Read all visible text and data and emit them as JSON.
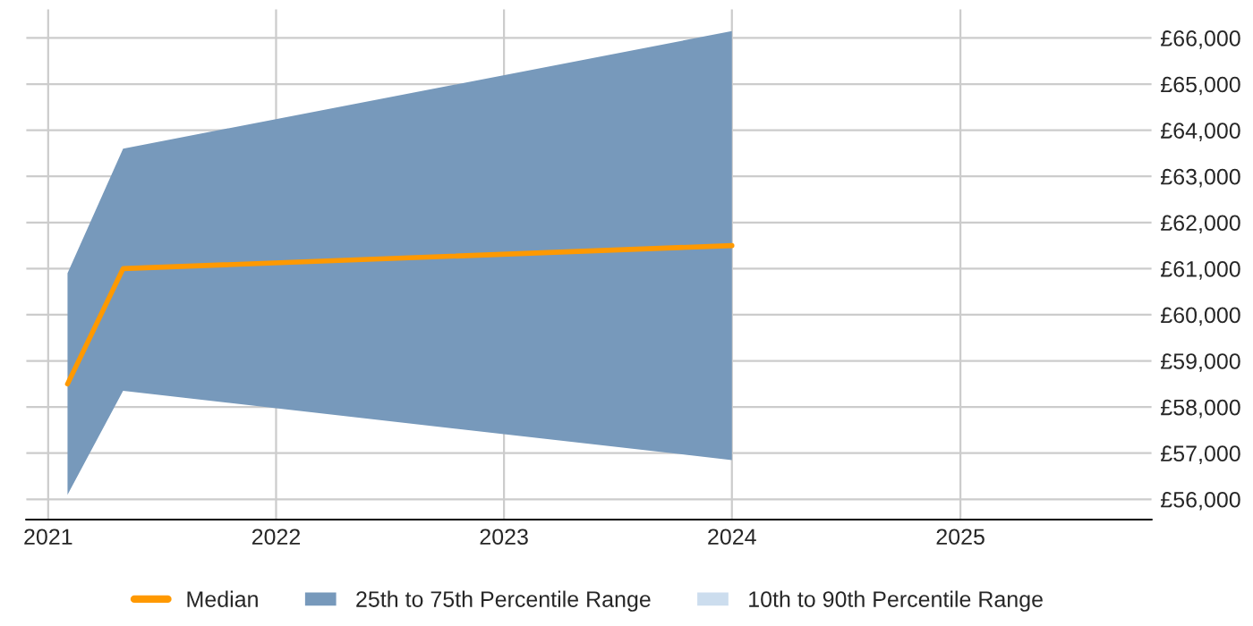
{
  "chart_data": {
    "type": "line",
    "x": [
      "2021-02",
      "2021-05",
      "2024-01"
    ],
    "series": [
      {
        "name": "Median",
        "color": "#ff9900",
        "values": [
          58500,
          61000,
          61500
        ]
      },
      {
        "name": "25th to 75th Percentile Range",
        "type": "area",
        "color": "#7799bb",
        "values": [
          null,
          null,
          null
        ],
        "lower": [
          56100,
          58350,
          56850
        ],
        "upper": [
          60900,
          63600,
          66150
        ]
      },
      {
        "name": "10th to 90th Percentile Range",
        "type": "area",
        "color": "#ccddee",
        "values": [
          null,
          null,
          null
        ]
      }
    ],
    "xlim": [
      "2020-11-27",
      "2025-11-03"
    ],
    "xticks": [
      {
        "value": "2021-01-01",
        "label": "2021"
      },
      {
        "value": "2022-01-01",
        "label": "2022"
      },
      {
        "value": "2023-01-01",
        "label": "2023"
      },
      {
        "value": "2024-01-01",
        "label": "2024"
      },
      {
        "value": "2025-01-01",
        "label": "2025"
      }
    ],
    "ylim": [
      55560,
      66620
    ],
    "yticks": [
      {
        "value": 56000,
        "label": "£56,000"
      },
      {
        "value": 57000,
        "label": "£57,000"
      },
      {
        "value": 58000,
        "label": "£58,000"
      },
      {
        "value": 59000,
        "label": "£59,000"
      },
      {
        "value": 60000,
        "label": "£60,000"
      },
      {
        "value": 61000,
        "label": "£61,000"
      },
      {
        "value": 62000,
        "label": "£62,000"
      },
      {
        "value": 63000,
        "label": "£63,000"
      },
      {
        "value": 64000,
        "label": "£64,000"
      },
      {
        "value": 65000,
        "label": "£65,000"
      },
      {
        "value": 66000,
        "label": "£66,000"
      }
    ],
    "grid": true,
    "legend": "bottom"
  }
}
